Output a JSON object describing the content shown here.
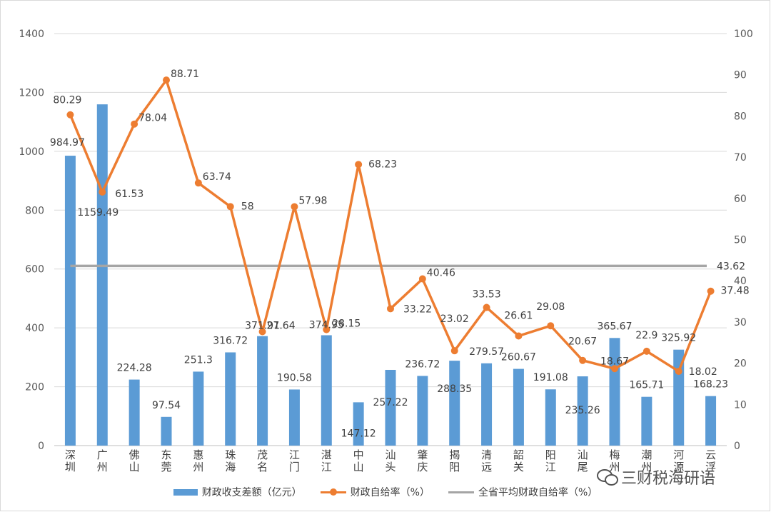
{
  "chart_data": {
    "type": "bar+line",
    "categories": [
      "深\n圳",
      "广\n州",
      "佛\n山",
      "东\n莞",
      "惠\n州",
      "珠\n海",
      "茂\n名",
      "江\n门",
      "湛\n江",
      "中\n山",
      "汕\n头",
      "肇\n庆",
      "揭\n阳",
      "清\n远",
      "韶\n关",
      "阳\n江",
      "汕\n尾",
      "梅\n州",
      "潮\n州",
      "河\n源",
      "云\n浮"
    ],
    "series": [
      {
        "name": "财政收支差额（亿元）",
        "type": "bar",
        "axis": "left",
        "color": "#5b9bd5",
        "values": [
          984.97,
          1159.49,
          224.28,
          97.54,
          251.3,
          316.72,
          371.91,
          190.58,
          374.95,
          147.12,
          257.22,
          236.72,
          288.35,
          279.57,
          260.67,
          191.08,
          235.26,
          365.67,
          165.71,
          325.92,
          168.23
        ],
        "labels": [
          "984.97",
          "1159.49",
          "224.28",
          "97.54",
          "251.3",
          "316.72",
          "371.91",
          "190.58",
          "374.95",
          "147.12",
          "257.22",
          "236.72",
          "288.35",
          "279.57",
          "260.67",
          "191.08",
          "235.26",
          "365.67",
          "165.71",
          "325.92",
          "168.23"
        ]
      },
      {
        "name": "财政自给率（%）",
        "type": "line",
        "axis": "right",
        "color": "#ed7d31",
        "values": [
          80.29,
          61.53,
          78.04,
          88.71,
          63.74,
          58,
          27.64,
          57.98,
          28.15,
          68.23,
          33.22,
          40.46,
          23.02,
          33.53,
          26.61,
          29.08,
          20.67,
          18.67,
          22.9,
          18.02,
          37.48
        ],
        "labels": [
          "80.29",
          "61.53",
          "78.04",
          "88.71",
          "63.74",
          "58",
          "27.64",
          "57.98",
          "28.15",
          "68.23",
          "33.22",
          "40.46",
          "23.02",
          "33.53",
          "26.61",
          "29.08",
          "20.67",
          "18.67",
          "22.9",
          "18.02",
          "37.48"
        ]
      },
      {
        "name": "全省平均财政自给率（%）",
        "type": "line",
        "axis": "right",
        "color": "#a5a5a5",
        "value": 43.62,
        "label": "43.62"
      }
    ],
    "y_left": {
      "min": 0,
      "max": 1400,
      "ticks": [
        "0",
        "200",
        "400",
        "600",
        "800",
        "1000",
        "1200",
        "1400"
      ]
    },
    "y_right": {
      "min": 0,
      "max": 100,
      "ticks": [
        "0",
        "10",
        "20",
        "30",
        "40",
        "50",
        "60",
        "70",
        "80",
        "90",
        "100"
      ]
    },
    "grid": true,
    "legend_position": "bottom"
  },
  "watermark": {
    "text": "三财税海研语",
    "icon": "wechat-icon"
  }
}
